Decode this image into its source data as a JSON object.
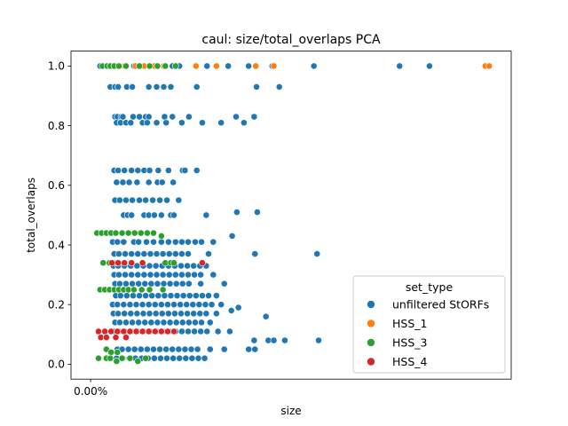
{
  "chart_data": {
    "type": "scatter",
    "title": "caul: size/total_overlaps PCA",
    "xlabel": "size",
    "ylabel": "total_overlaps",
    "x_tick_labels": [
      "0.00%"
    ],
    "y_tick_labels": [
      "0.0",
      "0.2",
      "0.4",
      "0.6",
      "0.8",
      "1.0"
    ],
    "ylim": [
      -0.05,
      1.05
    ],
    "xlim": [
      -0.0025,
      0.0535
    ],
    "grid": false,
    "legend": {
      "title": "set_type",
      "placement": "lower-right"
    },
    "series": [
      {
        "name": "unfiltered StORFs",
        "color": "#1f77b4",
        "x": [
          0.0012,
          0.0016,
          0.0021,
          0.0025,
          0.0031,
          0.0034,
          0.0042,
          0.0055,
          0.0063,
          0.0092,
          0.0104,
          0.0113,
          0.0148,
          0.0175,
          0.0201,
          0.0231,
          0.0284,
          0.0393,
          0.0431,
          0.0025,
          0.0031,
          0.0035,
          0.0046,
          0.0053,
          0.0074,
          0.0084,
          0.0093,
          0.0102,
          0.0135,
          0.0211,
          0.024,
          0.0031,
          0.0034,
          0.0039,
          0.0041,
          0.0054,
          0.0062,
          0.007,
          0.0074,
          0.0094,
          0.0104,
          0.0125,
          0.0185,
          0.0208,
          0.0033,
          0.0038,
          0.0045,
          0.0051,
          0.0066,
          0.0072,
          0.0084,
          0.0096,
          0.0116,
          0.0142,
          0.0166,
          0.0195,
          0.003,
          0.0035,
          0.0043,
          0.0052,
          0.006,
          0.0068,
          0.0075,
          0.0086,
          0.0099,
          0.0117,
          0.012,
          0.0135,
          0.0033,
          0.0041,
          0.0049,
          0.0059,
          0.0074,
          0.0085,
          0.0091,
          0.0105,
          0.0031,
          0.0037,
          0.0045,
          0.0053,
          0.0062,
          0.007,
          0.0079,
          0.0088,
          0.0097,
          0.0112,
          0.0186,
          0.0212,
          0.0042,
          0.0047,
          0.0052,
          0.0068,
          0.0074,
          0.0081,
          0.009,
          0.0102,
          0.0106,
          0.0147,
          0.018,
          0.0028,
          0.0034,
          0.0042,
          0.0055,
          0.0061,
          0.0071,
          0.008,
          0.009,
          0.0099,
          0.0108,
          0.0116,
          0.0124,
          0.0133,
          0.0141,
          0.0156,
          0.0209,
          0.0288,
          0.003,
          0.0036,
          0.0044,
          0.0052,
          0.006,
          0.0068,
          0.0076,
          0.0084,
          0.0092,
          0.01,
          0.0108,
          0.0116,
          0.0124,
          0.015,
          0.0029,
          0.0035,
          0.0043,
          0.0051,
          0.0059,
          0.0067,
          0.0075,
          0.0083,
          0.0091,
          0.0099,
          0.0107,
          0.0115,
          0.0123,
          0.0131,
          0.0139,
          0.0147,
          0.003,
          0.0036,
          0.0044,
          0.0052,
          0.006,
          0.0068,
          0.0076,
          0.0084,
          0.0092,
          0.01,
          0.0108,
          0.0116,
          0.0124,
          0.0132,
          0.014,
          0.0156,
          0.0031,
          0.0037,
          0.0045,
          0.0053,
          0.0061,
          0.0069,
          0.0077,
          0.0085,
          0.0093,
          0.0101,
          0.0109,
          0.0117,
          0.0125,
          0.014,
          0.017,
          0.0032,
          0.0038,
          0.0046,
          0.0054,
          0.0062,
          0.007,
          0.0078,
          0.0086,
          0.0094,
          0.0102,
          0.011,
          0.0118,
          0.0126,
          0.0134,
          0.0142,
          0.015,
          0.016,
          0.0188,
          0.0223,
          0.0247,
          0.029,
          0.0028,
          0.0034,
          0.0042,
          0.005,
          0.0058,
          0.0066,
          0.0074,
          0.0082,
          0.009,
          0.0098,
          0.0106,
          0.0114,
          0.0122,
          0.013,
          0.0138,
          0.0146,
          0.0154,
          0.0166,
          0.0179,
          0.0029,
          0.0035,
          0.0043,
          0.0051,
          0.0059,
          0.0067,
          0.0075,
          0.0083,
          0.0091,
          0.0099,
          0.0107,
          0.0115,
          0.0123,
          0.0131,
          0.0139,
          0.0147,
          0.016,
          0.0031,
          0.0037,
          0.0045,
          0.0053,
          0.0061,
          0.0069,
          0.0077,
          0.0085,
          0.0093,
          0.0101,
          0.0109,
          0.0117,
          0.0125,
          0.0133,
          0.0141,
          0.0152,
          0.003,
          0.0036,
          0.0044,
          0.0052,
          0.006,
          0.0068,
          0.0076,
          0.0084,
          0.0092,
          0.01,
          0.0108,
          0.0116,
          0.0124,
          0.0132,
          0.014,
          0.0148,
          0.0162,
          0.0177,
          0.0208,
          0.0226,
          0.0233,
          0.0034,
          0.004,
          0.0048,
          0.0056,
          0.0064,
          0.0072,
          0.008,
          0.0088,
          0.0096,
          0.0104,
          0.0112,
          0.012,
          0.0128,
          0.0136,
          0.0152,
          0.017,
          0.0201,
          0.0209,
          0.0033,
          0.0041,
          0.0049,
          0.0057,
          0.0065,
          0.0073,
          0.0081,
          0.0089,
          0.0097,
          0.0105,
          0.0113,
          0.0121,
          0.0129,
          0.0137,
          0.0145
        ],
        "y": [
          1.0,
          1.0,
          1.0,
          1.0,
          1.0,
          1.0,
          1.0,
          1.0,
          1.0,
          1.0,
          1.0,
          1.0,
          1.0,
          1.0,
          1.0,
          1.0,
          1.0,
          1.0,
          1.0,
          0.93,
          0.93,
          0.93,
          0.93,
          0.93,
          0.93,
          0.93,
          0.93,
          0.93,
          0.93,
          0.93,
          0.93,
          0.83,
          0.83,
          0.83,
          0.83,
          0.83,
          0.83,
          0.83,
          0.83,
          0.83,
          0.83,
          0.83,
          0.83,
          0.83,
          0.81,
          0.81,
          0.81,
          0.81,
          0.81,
          0.81,
          0.81,
          0.81,
          0.81,
          0.81,
          0.81,
          0.81,
          0.65,
          0.65,
          0.65,
          0.65,
          0.65,
          0.65,
          0.65,
          0.65,
          0.65,
          0.65,
          0.65,
          0.65,
          0.61,
          0.61,
          0.61,
          0.61,
          0.61,
          0.61,
          0.61,
          0.61,
          0.55,
          0.55,
          0.55,
          0.55,
          0.55,
          0.55,
          0.55,
          0.55,
          0.55,
          0.55,
          0.51,
          0.51,
          0.5,
          0.5,
          0.5,
          0.5,
          0.5,
          0.5,
          0.5,
          0.5,
          0.5,
          0.5,
          0.43,
          0.41,
          0.41,
          0.41,
          0.41,
          0.41,
          0.41,
          0.41,
          0.41,
          0.41,
          0.41,
          0.41,
          0.41,
          0.41,
          0.41,
          0.41,
          0.37,
          0.37,
          0.37,
          0.37,
          0.37,
          0.37,
          0.37,
          0.37,
          0.37,
          0.37,
          0.37,
          0.37,
          0.37,
          0.37,
          0.37,
          0.37,
          0.33,
          0.33,
          0.33,
          0.33,
          0.33,
          0.33,
          0.33,
          0.33,
          0.33,
          0.33,
          0.33,
          0.33,
          0.33,
          0.33,
          0.33,
          0.33,
          0.3,
          0.3,
          0.3,
          0.3,
          0.3,
          0.3,
          0.3,
          0.3,
          0.3,
          0.3,
          0.3,
          0.3,
          0.3,
          0.3,
          0.3,
          0.3,
          0.27,
          0.27,
          0.27,
          0.27,
          0.27,
          0.27,
          0.27,
          0.27,
          0.27,
          0.27,
          0.27,
          0.27,
          0.27,
          0.27,
          0.27,
          0.23,
          0.23,
          0.23,
          0.23,
          0.23,
          0.23,
          0.23,
          0.23,
          0.23,
          0.23,
          0.23,
          0.23,
          0.23,
          0.23,
          0.23,
          0.23,
          0.23,
          0.19,
          0.16,
          0.08,
          0.08,
          0.2,
          0.2,
          0.2,
          0.2,
          0.2,
          0.2,
          0.2,
          0.2,
          0.2,
          0.2,
          0.2,
          0.2,
          0.2,
          0.2,
          0.2,
          0.2,
          0.2,
          0.2,
          0.18,
          0.17,
          0.17,
          0.17,
          0.17,
          0.17,
          0.17,
          0.17,
          0.17,
          0.17,
          0.17,
          0.17,
          0.17,
          0.17,
          0.17,
          0.17,
          0.17,
          0.17,
          0.14,
          0.14,
          0.14,
          0.14,
          0.14,
          0.14,
          0.14,
          0.14,
          0.14,
          0.14,
          0.14,
          0.14,
          0.14,
          0.14,
          0.14,
          0.14,
          0.11,
          0.11,
          0.11,
          0.11,
          0.11,
          0.11,
          0.11,
          0.11,
          0.11,
          0.11,
          0.11,
          0.11,
          0.11,
          0.11,
          0.11,
          0.11,
          0.11,
          0.11,
          0.08,
          0.08,
          0.08,
          0.05,
          0.05,
          0.05,
          0.05,
          0.05,
          0.05,
          0.05,
          0.05,
          0.05,
          0.05,
          0.05,
          0.05,
          0.05,
          0.05,
          0.05,
          0.05,
          0.05,
          0.05,
          0.02,
          0.02,
          0.02,
          0.02,
          0.02,
          0.02,
          0.02,
          0.02,
          0.02,
          0.02,
          0.02,
          0.02,
          0.02,
          0.02,
          0.02
        ]
      },
      {
        "name": "HSS_1",
        "color": "#ff7f0e",
        "x": [
          0.003,
          0.0043,
          0.0057,
          0.0068,
          0.0081,
          0.0093,
          0.0134,
          0.016,
          0.021,
          0.0233,
          0.0502,
          0.0507
        ],
        "y": [
          1.0,
          1.0,
          1.0,
          1.0,
          1.0,
          1.0,
          1.0,
          1.0,
          1.0,
          1.0,
          1.0,
          1.0
        ]
      },
      {
        "name": "HSS_3",
        "color": "#2ca02c",
        "x": [
          0.0015,
          0.0021,
          0.0025,
          0.003,
          0.0036,
          0.0045,
          0.0062,
          0.0075,
          0.0085,
          0.0095,
          0.0108,
          0.0008,
          0.0014,
          0.002,
          0.0026,
          0.0032,
          0.004,
          0.0048,
          0.0056,
          0.0064,
          0.0072,
          0.008,
          0.009,
          0.0016,
          0.0024,
          0.0033,
          0.0095,
          0.0102,
          0.0106,
          0.0012,
          0.0018,
          0.0024,
          0.003,
          0.0036,
          0.0042,
          0.0048,
          0.0055,
          0.0065,
          0.0075,
          0.0092,
          0.002,
          0.0026,
          0.0034,
          0.001,
          0.002,
          0.0025,
          0.0033,
          0.004,
          0.005,
          0.006,
          0.007
        ],
        "y": [
          1.0,
          1.0,
          1.0,
          1.0,
          1.0,
          1.0,
          1.0,
          1.0,
          1.0,
          1.0,
          1.0,
          0.44,
          0.44,
          0.44,
          0.44,
          0.44,
          0.44,
          0.44,
          0.44,
          0.44,
          0.44,
          0.44,
          0.43,
          0.34,
          0.34,
          0.34,
          0.34,
          0.34,
          0.34,
          0.25,
          0.25,
          0.25,
          0.25,
          0.25,
          0.25,
          0.25,
          0.25,
          0.25,
          0.25,
          0.25,
          0.05,
          0.04,
          0.04,
          0.02,
          0.02,
          0.02,
          0.01,
          0.02,
          0.02,
          0.01,
          0.02
        ]
      },
      {
        "name": "HSS_4",
        "color": "#d62728",
        "x": [
          0.0027,
          0.0035,
          0.0043,
          0.0052,
          0.0066,
          0.0142,
          0.001,
          0.0018,
          0.0026,
          0.0034,
          0.0042,
          0.005,
          0.0058,
          0.0066,
          0.0074,
          0.0082,
          0.009,
          0.0098,
          0.0106,
          0.0013,
          0.002,
          0.0032,
          0.0045
        ],
        "y": [
          0.34,
          0.34,
          0.34,
          0.34,
          0.34,
          0.34,
          0.11,
          0.11,
          0.11,
          0.11,
          0.11,
          0.11,
          0.11,
          0.11,
          0.11,
          0.11,
          0.11,
          0.11,
          0.11,
          0.09,
          0.09,
          0.09,
          0.09
        ]
      }
    ]
  }
}
